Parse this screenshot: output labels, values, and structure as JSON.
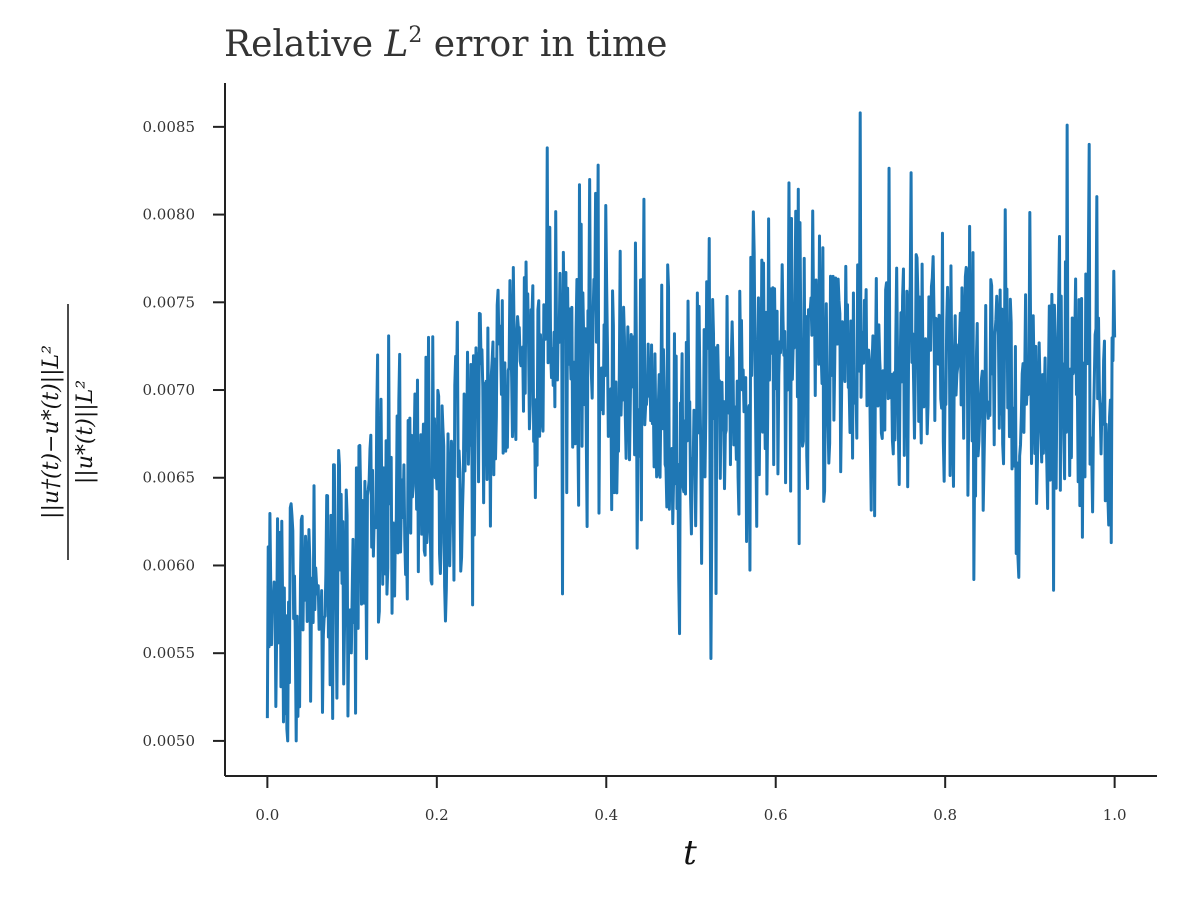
{
  "chart_data": {
    "type": "line",
    "title_prefix": "Relative ",
    "title_math_base": "L",
    "title_math_sup": "2",
    "title_suffix": " error in time",
    "xlabel": "t",
    "ylabel_numerator": "||u†(t)−u*(t)||L²",
    "ylabel_denominator": "||u*(t)||L²",
    "xlim": [
      -0.05,
      1.05
    ],
    "ylim": [
      0.0048,
      0.00875
    ],
    "xticks": [
      0.0,
      0.2,
      0.4,
      0.6,
      0.8,
      1.0
    ],
    "xtick_labels": [
      "0.0",
      "0.2",
      "0.4",
      "0.6",
      "0.8",
      "1.0"
    ],
    "yticks": [
      0.005,
      0.0055,
      0.006,
      0.0065,
      0.007,
      0.0075,
      0.008,
      0.0085
    ],
    "ytick_labels": [
      "0.0050",
      "0.0055",
      "0.0060",
      "0.0065",
      "0.0070",
      "0.0075",
      "0.0080",
      "0.0085"
    ],
    "grid": false,
    "line_color": "#1f77b4",
    "axis_color": "#222222",
    "trend": [
      {
        "x": 0.0,
        "y": 0.0057
      },
      {
        "x": 0.05,
        "y": 0.0059
      },
      {
        "x": 0.1,
        "y": 0.006
      },
      {
        "x": 0.15,
        "y": 0.0063
      },
      {
        "x": 0.2,
        "y": 0.0064
      },
      {
        "x": 0.25,
        "y": 0.0068
      },
      {
        "x": 0.3,
        "y": 0.0073
      },
      {
        "x": 0.35,
        "y": 0.0073
      },
      {
        "x": 0.4,
        "y": 0.0071
      },
      {
        "x": 0.45,
        "y": 0.0069
      },
      {
        "x": 0.5,
        "y": 0.0068
      },
      {
        "x": 0.55,
        "y": 0.007
      },
      {
        "x": 0.6,
        "y": 0.0072
      },
      {
        "x": 0.65,
        "y": 0.0072
      },
      {
        "x": 0.7,
        "y": 0.0072
      },
      {
        "x": 0.75,
        "y": 0.0071
      },
      {
        "x": 0.8,
        "y": 0.0071
      },
      {
        "x": 0.85,
        "y": 0.007
      },
      {
        "x": 0.9,
        "y": 0.007
      },
      {
        "x": 0.95,
        "y": 0.0071
      },
      {
        "x": 1.0,
        "y": 0.0071
      }
    ],
    "extremes": [
      {
        "x": 0.0,
        "y": 0.00513
      },
      {
        "x": 0.024,
        "y": 0.005
      },
      {
        "x": 0.034,
        "y": 0.005
      },
      {
        "x": 0.13,
        "y": 0.0072
      },
      {
        "x": 0.19,
        "y": 0.0073
      },
      {
        "x": 0.33,
        "y": 0.00838
      },
      {
        "x": 0.38,
        "y": 0.0082
      },
      {
        "x": 0.53,
        "y": 0.00584
      },
      {
        "x": 0.7,
        "y": 0.00858
      },
      {
        "x": 0.944,
        "y": 0.00851
      },
      {
        "x": 0.97,
        "y": 0.0084
      },
      {
        "x": 0.996,
        "y": 0.00613
      },
      {
        "x": 1.0,
        "y": 0.0073
      }
    ],
    "noise_sd": 0.00042,
    "num_points": 1000
  }
}
